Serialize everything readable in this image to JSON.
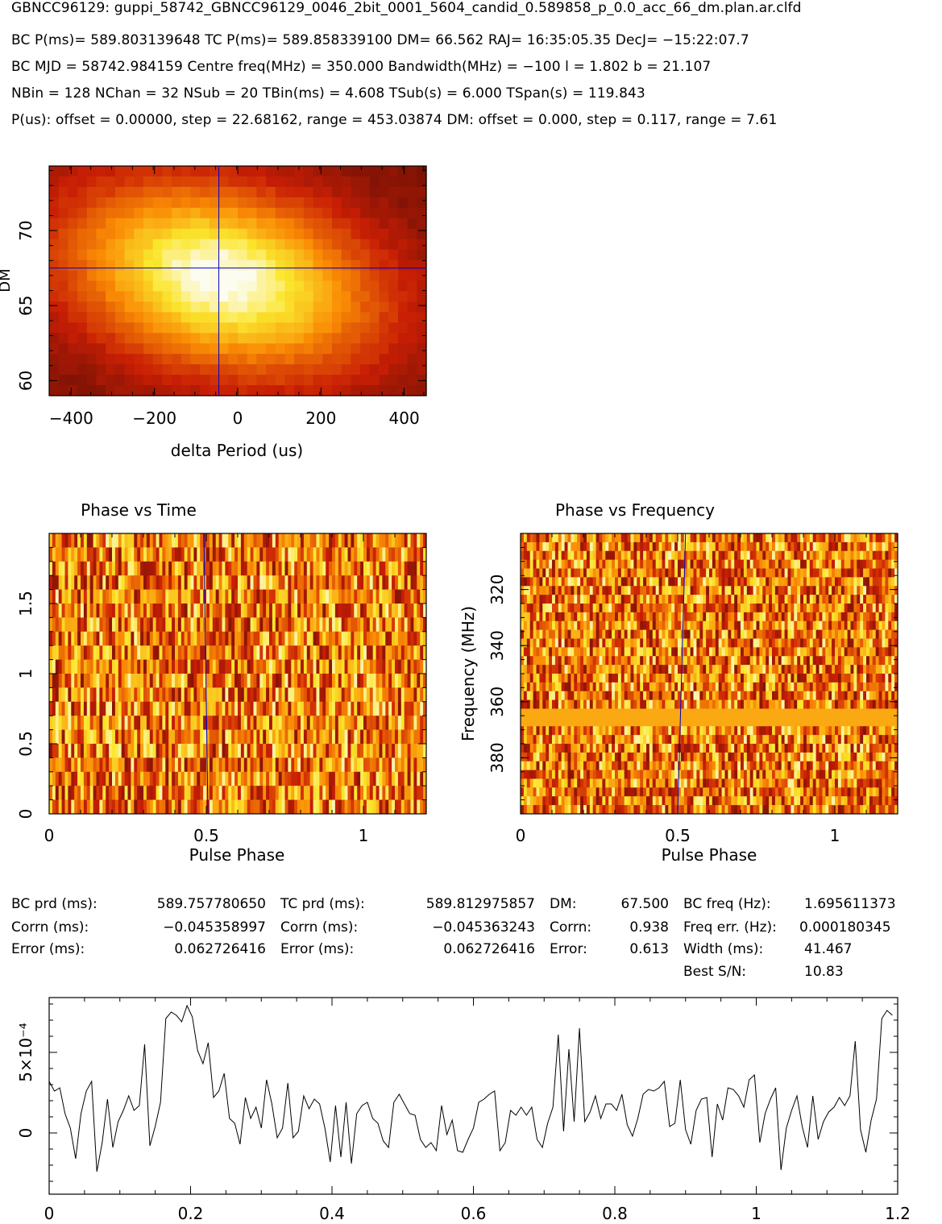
{
  "header": {
    "title": "GBNCC96129: guppi_58742_GBNCC96129_0046_2bit_0001_5604_candid_0.589858_p_0.0_acc_66_dm.plan.ar.clfd",
    "line1": "BC P(ms)= 589.803139648 TC P(ms)= 589.858339100 DM= 66.562 RAJ= 16:35:05.35 DecJ= −15:22:07.7",
    "line2": "BC MJD = 58742.984159 Centre freq(MHz) = 350.000 Bandwidth(MHz) = −100 l = 1.802 b = 21.107",
    "line3": "NBin = 128 NChan = 32 NSub = 20 TBin(ms) = 4.608 TSub(s) = 6.000 TSpan(s) = 119.843",
    "line4": "P(us): offset = 0.00000, step = 22.68162, range = 453.03874 DM: offset = 0.000, step = 0.117, range = 7.61"
  },
  "stats": {
    "c1": [
      {
        "label": "BC prd (ms):",
        "value": "589.757780650"
      },
      {
        "label": "Corrn (ms):",
        "value": "−0.045358997"
      },
      {
        "label": "Error (ms):",
        "value": "0.062726416"
      }
    ],
    "c2": [
      {
        "label": "TC prd (ms):",
        "value": "589.812975857"
      },
      {
        "label": "Corrn (ms):",
        "value": "−0.045363243"
      },
      {
        "label": "Error (ms):",
        "value": "0.062726416"
      }
    ],
    "c3": [
      {
        "label": "DM:",
        "value": "67.500"
      },
      {
        "label": "Corrn:",
        "value": "0.938"
      },
      {
        "label": "Error:",
        "value": "0.613"
      }
    ],
    "c4": [
      {
        "label": "BC freq (Hz):",
        "value": "1.695611373"
      },
      {
        "label": "Freq err. (Hz):",
        "value": "0.000180345"
      },
      {
        "label": "Width (ms):",
        "value": "41.467"
      },
      {
        "label": "Best S/N:",
        "value": "10.83"
      }
    ]
  },
  "colors": {
    "axis": "#000000",
    "crosshair": "#0000cc",
    "profile": "#000000"
  },
  "chart_data": [
    {
      "type": "heatmap",
      "name": "dm-period-search",
      "xlabel": "delta Period (us)",
      "ylabel": "DM",
      "xlim": [
        -453.04,
        453.04
      ],
      "ylim": [
        59.0,
        74.3
      ],
      "xticks": [
        -400,
        -200,
        0,
        200,
        400
      ],
      "xtick_labels": [
        "−400",
        "−200",
        "0",
        "200",
        "400"
      ],
      "yticks": [
        60,
        65,
        70
      ],
      "ytick_labels": [
        "60",
        "65",
        "70"
      ],
      "best_period_offset": -45.36,
      "best_dm": 67.5,
      "colormap": "heat (black-red-orange-yellow-white)",
      "peak": {
        "x": -40,
        "y": 66.8
      }
    },
    {
      "type": "heatmap",
      "name": "phase-vs-time",
      "title": "Phase vs Time",
      "xlabel": "Pulse Phase",
      "ylabel": "",
      "xlim": [
        0,
        1.2
      ],
      "ylim": [
        0,
        2.0
      ],
      "xticks": [
        0,
        0.5,
        1
      ],
      "xtick_labels": [
        "0",
        "0.5",
        "1"
      ],
      "yticks": [
        0,
        0.5,
        1,
        1.5
      ],
      "ytick_labels": [
        "0",
        "0.5",
        "1",
        "1.5"
      ],
      "rows": 20,
      "cols": 120,
      "marker_phase": 0.5
    },
    {
      "type": "heatmap",
      "name": "phase-vs-frequency",
      "title": "Phase vs Frequency",
      "xlabel": "Pulse Phase",
      "ylabel": "Frequency (MHz)",
      "xlim": [
        0,
        1.2
      ],
      "ylim": [
        400,
        300
      ],
      "xticks": [
        0,
        0.5,
        1
      ],
      "xtick_labels": [
        "0",
        "0.5",
        "1"
      ],
      "yticks": [
        320,
        340,
        360,
        380
      ],
      "ytick_labels": [
        "320",
        "340",
        "360",
        "380"
      ],
      "rows": 32,
      "cols": 120,
      "masked_band_mhz": [
        364,
        368
      ],
      "marker_phase_top": 0.525,
      "marker_phase_bottom": 0.5
    },
    {
      "type": "line",
      "name": "pulse-profile",
      "xlim": [
        0,
        1.2
      ],
      "ylim": [
        -0.00038,
        0.00084
      ],
      "xticks": [
        0,
        0.2,
        0.4,
        0.6,
        0.8,
        1,
        1.2
      ],
      "xtick_labels": [
        "0",
        "0.2",
        "0.4",
        "0.6",
        "0.8",
        "1",
        "1.2"
      ],
      "yticks": [
        0,
        0.0005
      ],
      "ytick_labels": [
        "0",
        "5×10⁻⁴"
      ],
      "x": [
        0.0,
        0.0075,
        0.015,
        0.0225,
        0.03,
        0.0375,
        0.045,
        0.0525,
        0.06,
        0.0675,
        0.075,
        0.0825,
        0.09,
        0.0975,
        0.105,
        0.1125,
        0.12,
        0.1275,
        0.135,
        0.1425,
        0.15,
        0.1575,
        0.165,
        0.1725,
        0.18,
        0.1875,
        0.195,
        0.2025,
        0.21,
        0.2175,
        0.225,
        0.2325,
        0.24,
        0.2475,
        0.255,
        0.2625,
        0.27,
        0.2775,
        0.285,
        0.2925,
        0.3,
        0.3075,
        0.315,
        0.3225,
        0.33,
        0.3375,
        0.345,
        0.3525,
        0.36,
        0.3675,
        0.375,
        0.3825,
        0.39,
        0.3975,
        0.405,
        0.4125,
        0.42,
        0.4275,
        0.435,
        0.4425,
        0.45,
        0.4575,
        0.465,
        0.4725,
        0.48,
        0.4875,
        0.495,
        0.5025,
        0.51,
        0.5175,
        0.525,
        0.5325,
        0.54,
        0.5475,
        0.555,
        0.5625,
        0.57,
        0.5775,
        0.585,
        0.5925,
        0.6,
        0.6075,
        0.615,
        0.6225,
        0.63,
        0.6375,
        0.645,
        0.6525,
        0.66,
        0.6675,
        0.675,
        0.6825,
        0.69,
        0.6975,
        0.705,
        0.7125,
        0.72,
        0.7275,
        0.735,
        0.7425,
        0.75,
        0.7575,
        0.765,
        0.7725,
        0.78,
        0.7875,
        0.795,
        0.8025,
        0.81,
        0.8175,
        0.825,
        0.8325,
        0.84,
        0.8475,
        0.855,
        0.8625,
        0.87,
        0.8775,
        0.885,
        0.8925,
        0.9,
        0.9075,
        0.915,
        0.9225,
        0.93,
        0.9375,
        0.945,
        0.9525,
        0.96,
        0.9675,
        0.975,
        0.9825,
        0.99,
        0.9975,
        1.005,
        1.0125,
        1.02,
        1.0275,
        1.035,
        1.0425,
        1.05,
        1.0575,
        1.065,
        1.0725,
        1.08,
        1.0875,
        1.095,
        1.1025,
        1.11,
        1.1175,
        1.125,
        1.1325,
        1.14,
        1.1475,
        1.155,
        1.1625,
        1.17,
        1.1775,
        1.185,
        1.1925
      ],
      "values": [
        0.00032,
        0.00026,
        0.00028,
        0.00012,
        3e-05,
        -0.00016,
        0.00012,
        0.00026,
        0.00032,
        -0.00024,
        -6e-05,
        0.00021,
        -9e-05,
        7e-05,
        0.00014,
        0.00023,
        0.00014,
        0.00017,
        0.00055,
        -8e-05,
        4e-05,
        0.00019,
        0.00071,
        0.00075,
        0.00073,
        0.00069,
        0.00079,
        0.00072,
        0.00051,
        0.00043,
        0.00056,
        0.00022,
        0.00026,
        0.00037,
        9e-05,
        6e-05,
        -7e-05,
        0.00022,
        9e-05,
        0.00016,
        3e-05,
        0.00033,
        0.00018,
        -3e-05,
        3e-05,
        0.00031,
        -3e-05,
        1e-05,
        0.00023,
        0.00015,
        0.00021,
        0.00018,
        3e-05,
        -0.00018,
        0.00017,
        -0.00015,
        0.00019,
        -0.00019,
        0.00012,
        0.00017,
        0.00019,
        9e-05,
        6e-05,
        -5e-05,
        -9e-05,
        0.00019,
        0.00024,
        0.00018,
        0.00012,
        0.00011,
        -4e-05,
        -9e-05,
        -6e-05,
        -0.00011,
        0.00017,
        -1e-05,
        8e-05,
        -0.00011,
        -0.00012,
        -4e-05,
        3e-05,
        0.00019,
        0.00021,
        0.00024,
        0.00026,
        -0.00011,
        -6e-05,
        0.00014,
        0.00011,
        0.00016,
        0.00011,
        0.00016,
        -4e-05,
        -9e-05,
        6e-05,
        0.00016,
        0.00061,
        1e-05,
        0.00052,
        7e-05,
        0.00065,
        7e-05,
        0.00013,
        0.00023,
        9e-05,
        0.00018,
        0.00018,
        0.00014,
        0.00024,
        5e-05,
        -2e-05,
        9e-05,
        0.00024,
        0.00027,
        0.00026,
        0.00028,
        0.00032,
        4e-05,
        6e-05,
        0.00033,
        2e-05,
        -7e-05,
        0.00014,
        0.00021,
        0.00022,
        -0.00015,
        0.00018,
        8e-05,
        0.00028,
        0.00027,
        0.00023,
        0.00016,
        0.00033,
        0.00036,
        -6e-05,
        0.00012,
        0.00021,
        0.00028,
        -0.00023,
        3e-05,
        0.00014,
        0.00023,
        4e-05,
        -9e-05,
        0.00023,
        -4e-05,
        7e-05,
        0.00013,
        0.00016,
        0.00022,
        0.00017,
        0.00023,
        0.00057,
        2e-05,
        -0.00012,
        8e-05,
        0.00021,
        0.00071,
        0.00076,
        0.00073
      ]
    }
  ]
}
